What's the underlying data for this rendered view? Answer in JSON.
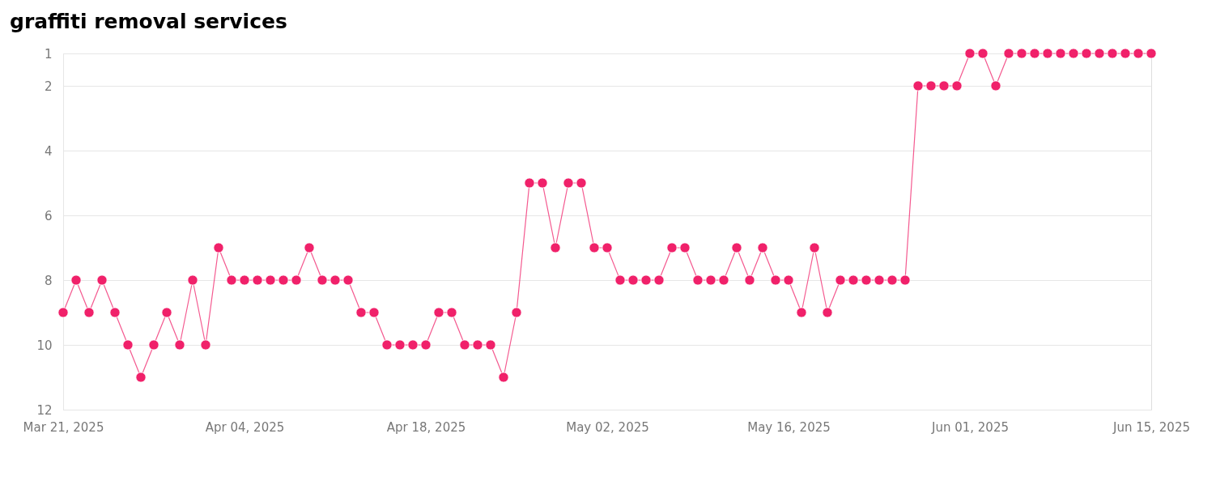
{
  "chart_data": {
    "type": "line",
    "title": "graffiti removal services",
    "categories": [
      "Mar 21, 2025",
      null,
      null,
      null,
      null,
      null,
      null,
      null,
      null,
      null,
      null,
      null,
      null,
      null,
      "Apr 04, 2025",
      null,
      null,
      null,
      null,
      null,
      null,
      null,
      null,
      null,
      null,
      null,
      null,
      null,
      "Apr 18, 2025",
      null,
      null,
      null,
      null,
      null,
      null,
      null,
      null,
      null,
      null,
      null,
      null,
      null,
      "May 02, 2025",
      null,
      null,
      null,
      null,
      null,
      null,
      null,
      null,
      null,
      null,
      null,
      null,
      null,
      "May 16, 2025",
      null,
      null,
      null,
      null,
      null,
      null,
      null,
      null,
      null,
      null,
      null,
      null,
      null,
      "Jun 01, 2025",
      null,
      null,
      null,
      null,
      null,
      null,
      null,
      null,
      null,
      null,
      null,
      null,
      null,
      "Jun 15, 2025"
    ],
    "series": [
      {
        "color": "#f0216a",
        "values": [
          9,
          8,
          9,
          8,
          9,
          10,
          11,
          10,
          9,
          10,
          8,
          10,
          7,
          8,
          8,
          8,
          8,
          8,
          8,
          7,
          8,
          8,
          8,
          9,
          9,
          10,
          10,
          10,
          10,
          9,
          9,
          10,
          10,
          10,
          11,
          9,
          5,
          5,
          7,
          5,
          5,
          7,
          7,
          8,
          8,
          8,
          8,
          7,
          7,
          8,
          8,
          8,
          7,
          8,
          7,
          8,
          8,
          9,
          7,
          9,
          8,
          8,
          8,
          8,
          8,
          8,
          2,
          2,
          2,
          2,
          1,
          1,
          2,
          1,
          1,
          1,
          1,
          1,
          1,
          1,
          1,
          1,
          1,
          1,
          1
        ]
      }
    ],
    "ylim": [
      12,
      1
    ],
    "yticks": [
      1,
      2,
      4,
      6,
      8,
      10,
      12
    ],
    "grid": "y",
    "marker": "circle",
    "line_style": "solid"
  }
}
